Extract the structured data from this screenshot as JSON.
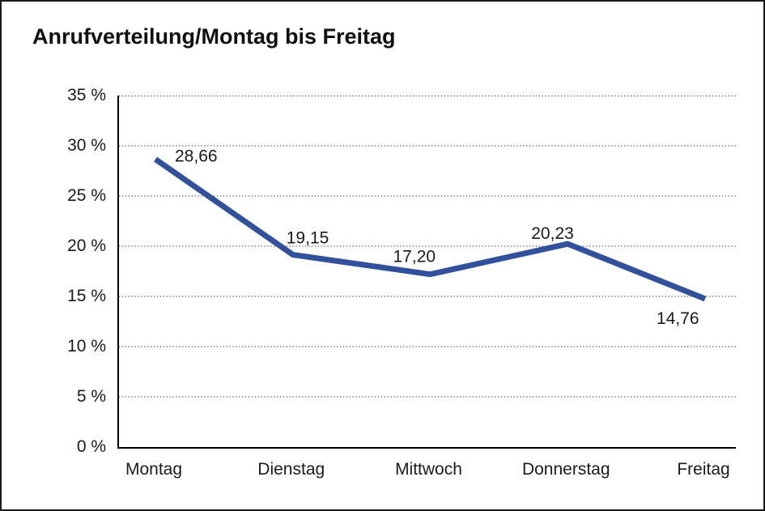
{
  "title": "Anrufverteilung/Montag bis Freitag",
  "colors": {
    "line": "#31519d",
    "grid": "#555555",
    "axis": "#000000",
    "background": "#ffffff",
    "text": "#1a1a1a"
  },
  "chart_data": {
    "type": "line",
    "title": "Anrufverteilung/Montag bis Freitag",
    "categories": [
      "Montag",
      "Dienstag",
      "Mittwoch",
      "Donnerstag",
      "Freitag"
    ],
    "values": [
      28.66,
      19.15,
      17.2,
      20.23,
      14.76
    ],
    "value_labels": [
      "28,66",
      "19,15",
      "17,20",
      "20,23",
      "14,76"
    ],
    "y_ticks": [
      "35 %",
      "30 %",
      "25 %",
      "20 %",
      "15 %",
      "10 %",
      "5 %",
      "0 %"
    ],
    "y_tick_values": [
      35,
      30,
      25,
      20,
      15,
      10,
      5,
      0
    ],
    "xlabel": "",
    "ylabel": "",
    "ylim": [
      0,
      35
    ],
    "grid": "horizontal-dotted",
    "legend": "none",
    "line_color": "#31519d",
    "line_width": 7
  }
}
